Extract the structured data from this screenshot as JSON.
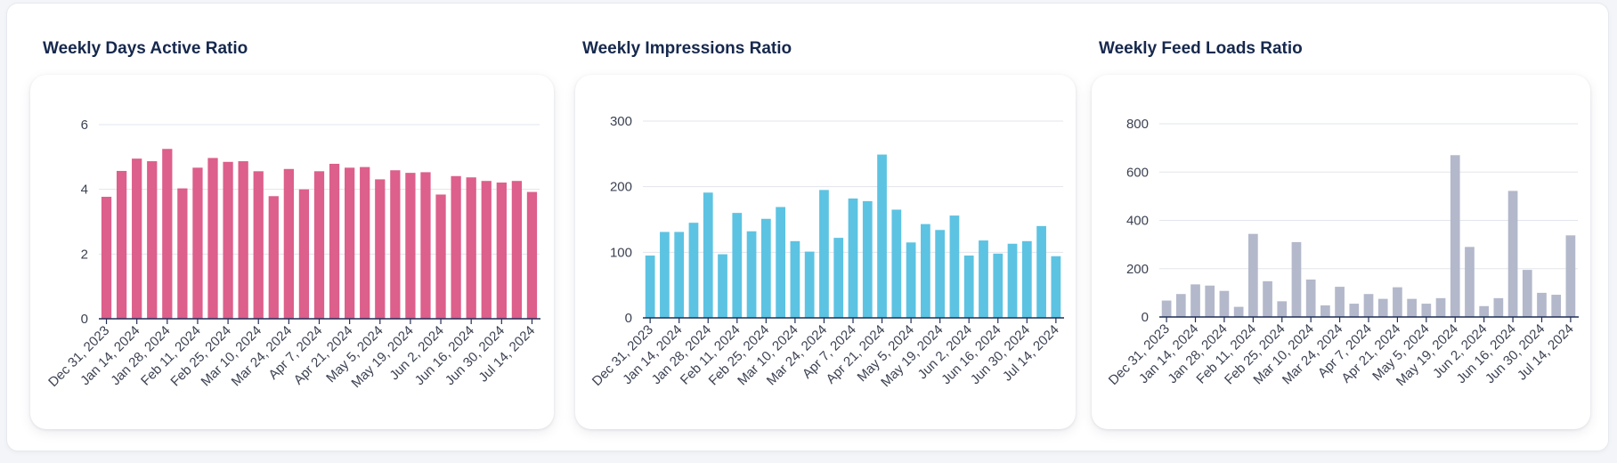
{
  "charts": [
    {
      "title": "Weekly Days Active Ratio",
      "chart_data": {
        "type": "bar",
        "color": "#dd5f8b",
        "ylim": [
          0,
          6
        ],
        "yticks": [
          0,
          2,
          4,
          6
        ],
        "tick_labels": [
          "Dec 31, 2023",
          "Jan 14, 2024",
          "Jan 28, 2024",
          "Feb 11, 2024",
          "Feb 25, 2024",
          "Mar 10, 2024",
          "Mar 24, 2024",
          "Apr 7, 2024",
          "Apr 21, 2024",
          "May 5, 2024",
          "May 19, 2024",
          "Jun 2, 2024",
          "Jun 16, 2024",
          "Jun 30, 2024",
          "Jul 14, 2024"
        ],
        "values": [
          3.77,
          4.57,
          4.95,
          4.87,
          5.25,
          4.03,
          4.67,
          4.97,
          4.85,
          4.87,
          4.56,
          3.79,
          4.63,
          4.0,
          4.56,
          4.79,
          4.67,
          4.69,
          4.31,
          4.59,
          4.51,
          4.53,
          3.84,
          4.41,
          4.37,
          4.26,
          4.21,
          4.26,
          3.92
        ]
      }
    },
    {
      "title": "Weekly Impressions Ratio",
      "chart_data": {
        "type": "bar",
        "color": "#5dc3e2",
        "ylim": [
          0,
          300
        ],
        "yticks": [
          0,
          100,
          200,
          300
        ],
        "tick_labels": [
          "Dec 31, 2023",
          "Jan 14, 2024",
          "Jan 28, 2024",
          "Feb 11, 2024",
          "Feb 25, 2024",
          "Mar 10, 2024",
          "Mar 24, 2024",
          "Apr 7, 2024",
          "Apr 21, 2024",
          "May 5, 2024",
          "May 19, 2024",
          "Jun 2, 2024",
          "Jun 16, 2024",
          "Jun 30, 2024",
          "Jul 14, 2024"
        ],
        "values": [
          95,
          131,
          131,
          145,
          191,
          97,
          160,
          132,
          151,
          169,
          117,
          101,
          195,
          122,
          182,
          178,
          249,
          165,
          115,
          143,
          134,
          156,
          95,
          118,
          98,
          113,
          117,
          140,
          94
        ]
      }
    },
    {
      "title": "Weekly Feed Loads Ratio",
      "chart_data": {
        "type": "bar",
        "color": "#b3b8cb",
        "ylim": [
          0,
          800
        ],
        "yticks": [
          0,
          200,
          400,
          600,
          800
        ],
        "tick_labels": [
          "Dec 31, 2023",
          "Jan 14, 2024",
          "Jan 28, 2024",
          "Feb 11, 2024",
          "Feb 25, 2024",
          "Mar 10, 2024",
          "Mar 24, 2024",
          "Apr 7, 2024",
          "Apr 21, 2024",
          "May 5, 2024",
          "May 19, 2024",
          "Jun 2, 2024",
          "Jun 16, 2024",
          "Jun 30, 2024",
          "Jul 14, 2024"
        ],
        "values": [
          68,
          95,
          135,
          130,
          108,
          42,
          344,
          148,
          65,
          310,
          155,
          48,
          125,
          55,
          95,
          75,
          123,
          75,
          55,
          78,
          670,
          290,
          45,
          78,
          522,
          195,
          100,
          92,
          338
        ]
      }
    }
  ]
}
